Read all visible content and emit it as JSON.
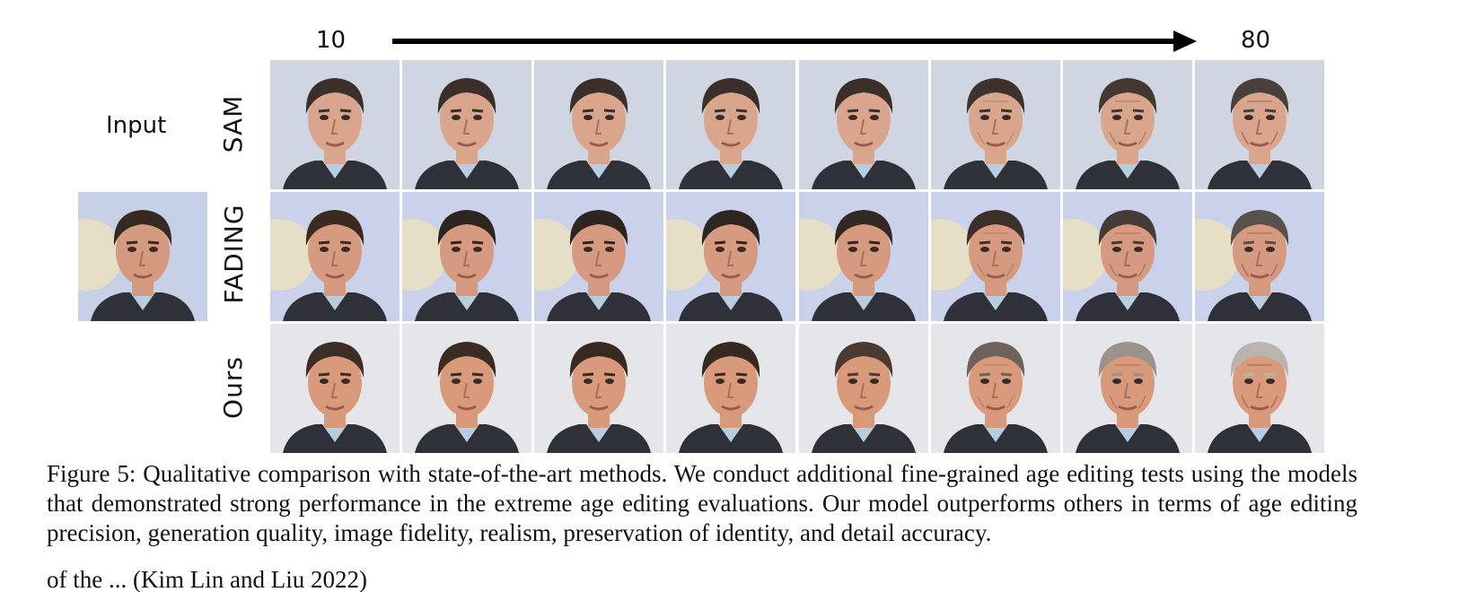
{
  "figure": {
    "age_start": "10",
    "age_end": "80",
    "input_label": "Input",
    "rows": [
      {
        "label": "SAM",
        "hair": "#3a2f29",
        "skin": "#d9a58c",
        "bg": "#cfd6e2"
      },
      {
        "label": "FADING",
        "hair": "#2f2520",
        "skin": "#d59a80",
        "bg": "#c9d2ea"
      },
      {
        "label": "Ours",
        "hair": "#3c2e24",
        "skin": "#d99a7c",
        "bg": "#e5e6ea"
      }
    ],
    "aging_hair_ours": [
      "#3c2e24",
      "#3a2c22",
      "#382a21",
      "#36291f",
      "#4a3a30",
      "#6e625a",
      "#9a928b",
      "#b9b4ae"
    ],
    "aging_hair_fading": [
      "#3a2a20",
      "#2f2520",
      "#2f2520",
      "#2f2520",
      "#332822",
      "#3b302a",
      "#463b35",
      "#57504b"
    ],
    "aging_hair_sam": [
      "#3a2f29",
      "#3a2f29",
      "#3a2f29",
      "#3a2f29",
      "#3a2f29",
      "#3d322c",
      "#433832",
      "#4a403a"
    ],
    "caption": "Figure 5: Qualitative comparison with state-of-the-art methods. We conduct additional fine-grained age editing tests using the models that demonstrated strong performance in the extreme age editing evaluations. Our model outperforms others in terms of age editing precision, generation quality, image fidelity, realism, preservation of identity, and detail accuracy.",
    "partial_line": "of the ... (Kim Lin and Liu 2022)"
  }
}
